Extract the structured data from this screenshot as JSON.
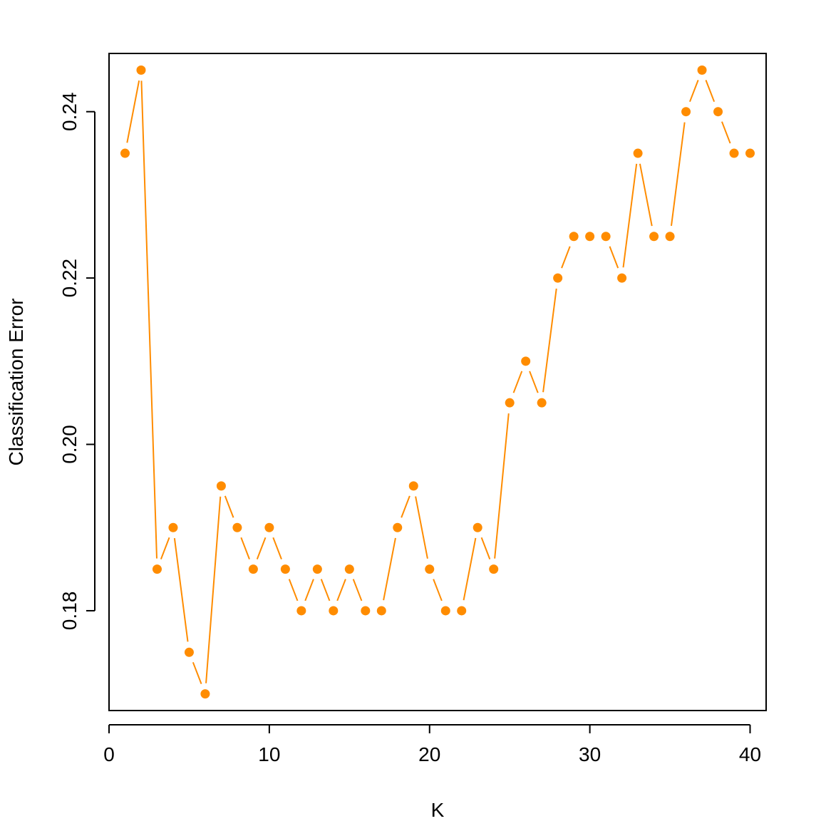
{
  "chart_data": {
    "type": "line",
    "title": "",
    "xlabel": "K",
    "ylabel": "Classification Error",
    "xlim": [
      0,
      41
    ],
    "ylim": [
      0.168,
      0.247
    ],
    "xticks": [
      0,
      10,
      20,
      30,
      40
    ],
    "xtick_labels": [
      "0",
      "10",
      "20",
      "30",
      "40"
    ],
    "yticks": [
      0.18,
      0.2,
      0.22,
      0.24
    ],
    "ytick_labels": [
      "0.18",
      "0.20",
      "0.22",
      "0.24"
    ],
    "grid": false,
    "legend": "none",
    "marker": "filled-circle",
    "line_style": "overplotted (gaps at points)",
    "color": "#FF8C00",
    "x": [
      1,
      2,
      3,
      4,
      5,
      6,
      7,
      8,
      9,
      10,
      11,
      12,
      13,
      14,
      15,
      16,
      17,
      18,
      19,
      20,
      21,
      22,
      23,
      24,
      25,
      26,
      27,
      28,
      29,
      30,
      31,
      32,
      33,
      34,
      35,
      36,
      37,
      38,
      39,
      40
    ],
    "y": [
      0.235,
      0.245,
      0.185,
      0.19,
      0.175,
      0.17,
      0.195,
      0.19,
      0.185,
      0.19,
      0.185,
      0.18,
      0.185,
      0.18,
      0.185,
      0.18,
      0.18,
      0.19,
      0.195,
      0.185,
      0.18,
      0.18,
      0.19,
      0.185,
      0.205,
      0.21,
      0.205,
      0.22,
      0.225,
      0.225,
      0.225,
      0.22,
      0.235,
      0.225,
      0.225,
      0.24,
      0.245,
      0.24,
      0.235,
      0.235
    ]
  }
}
